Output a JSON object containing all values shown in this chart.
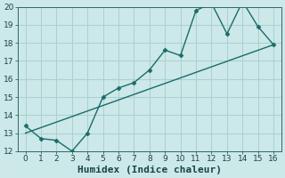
{
  "xlabel": "Humidex (Indice chaleur)",
  "xlim": [
    -0.5,
    16.5
  ],
  "ylim": [
    12,
    20
  ],
  "xticks": [
    0,
    1,
    2,
    3,
    4,
    5,
    6,
    7,
    8,
    9,
    10,
    11,
    12,
    13,
    14,
    15,
    16
  ],
  "yticks": [
    12,
    13,
    14,
    15,
    16,
    17,
    18,
    19,
    20
  ],
  "background_color": "#cce8e8",
  "grid_color": "#aad0d0",
  "line_color": "#1a6b6b",
  "jagged_x": [
    0,
    1,
    2,
    3,
    4,
    5,
    6,
    7,
    8,
    9,
    10,
    11,
    12,
    13,
    14,
    15,
    16
  ],
  "jagged_y": [
    13.4,
    12.7,
    12.6,
    12.0,
    13.0,
    15.0,
    15.5,
    15.8,
    16.5,
    17.6,
    17.3,
    19.8,
    20.2,
    18.5,
    20.3,
    18.9,
    17.9
  ],
  "trend_x": [
    0,
    16
  ],
  "trend_y": [
    13.0,
    17.9
  ],
  "marker": "D",
  "markersize": 2.5,
  "linewidth": 1.0,
  "xlabel_fontsize": 8,
  "tick_fontsize": 6.5
}
